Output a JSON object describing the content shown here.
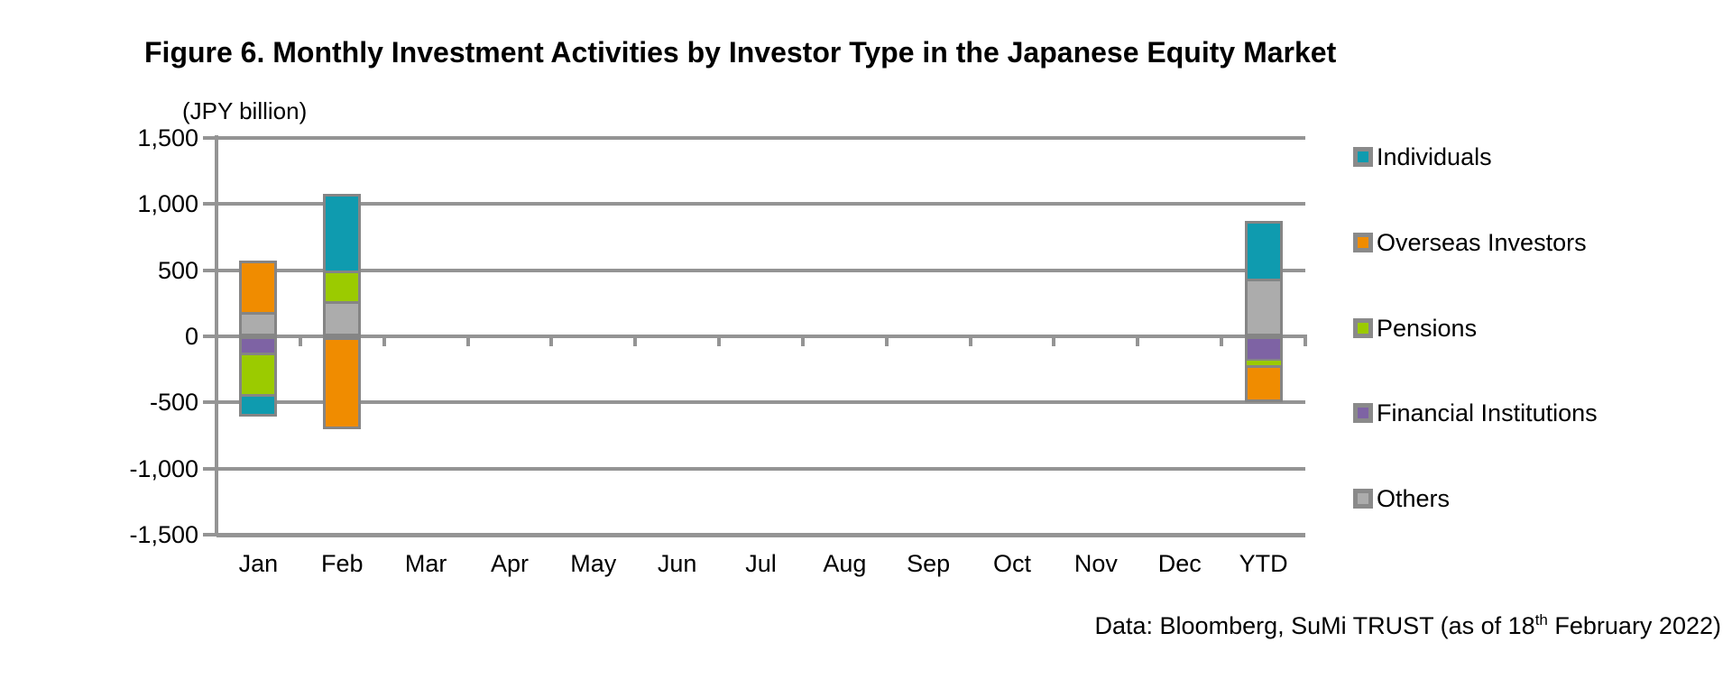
{
  "footer": {
    "prefix": "Data: Bloomberg, SuMi TRUST (as of 18",
    "superscript": "th",
    "suffix": " February 2022)"
  },
  "colors": {
    "grid": "#949494",
    "bar_border": "#858585",
    "text": "#000000",
    "background": "#FFFFFF"
  },
  "chart_data": {
    "type": "bar",
    "stacked": true,
    "title": "Figure 6. Monthly Investment Activities by Investor Type in the Japanese Equity Market",
    "unit_label": "(JPY billion)",
    "categories": [
      "Jan",
      "Feb",
      "Mar",
      "Apr",
      "May",
      "Jun",
      "Jul",
      "Aug",
      "Sep",
      "Oct",
      "Nov",
      "Dec",
      "YTD"
    ],
    "series": [
      {
        "name": "Individuals",
        "color": "#0F9BAF",
        "values": [
          -145,
          580,
          null,
          null,
          null,
          null,
          null,
          null,
          null,
          null,
          null,
          null,
          440
        ]
      },
      {
        "name": "Overseas Investors",
        "color": "#F08C00",
        "values": [
          390,
          -675,
          null,
          null,
          null,
          null,
          null,
          null,
          null,
          null,
          null,
          null,
          -260
        ]
      },
      {
        "name": "Pensions",
        "color": "#9BCB00",
        "values": [
          -320,
          235,
          null,
          null,
          null,
          null,
          null,
          null,
          null,
          null,
          null,
          null,
          -50
        ]
      },
      {
        "name": "Financial Institutions",
        "color": "#7E63A4",
        "values": [
          -140,
          -25,
          null,
          null,
          null,
          null,
          null,
          null,
          null,
          null,
          null,
          null,
          -190
        ]
      },
      {
        "name": "Others",
        "color": "#ACACAC",
        "values": [
          185,
          265,
          null,
          null,
          null,
          null,
          null,
          null,
          null,
          null,
          null,
          null,
          435
        ]
      }
    ],
    "stack_order_from_axis": [
      "Others",
      "Financial Institutions",
      "Pensions",
      "Overseas Investors",
      "Individuals"
    ],
    "ylim": [
      -1500,
      1500
    ],
    "ytick_step": 500,
    "yticks": [
      {
        "value": 1500,
        "label": "1,500"
      },
      {
        "value": 1000,
        "label": "1,000"
      },
      {
        "value": 500,
        "label": "500"
      },
      {
        "value": 0,
        "label": "0"
      },
      {
        "value": -500,
        "label": "-500"
      },
      {
        "value": -1000,
        "label": "-1,000"
      },
      {
        "value": -1500,
        "label": "-1,500"
      }
    ],
    "grid": "horizontal",
    "legend_position": "right"
  }
}
